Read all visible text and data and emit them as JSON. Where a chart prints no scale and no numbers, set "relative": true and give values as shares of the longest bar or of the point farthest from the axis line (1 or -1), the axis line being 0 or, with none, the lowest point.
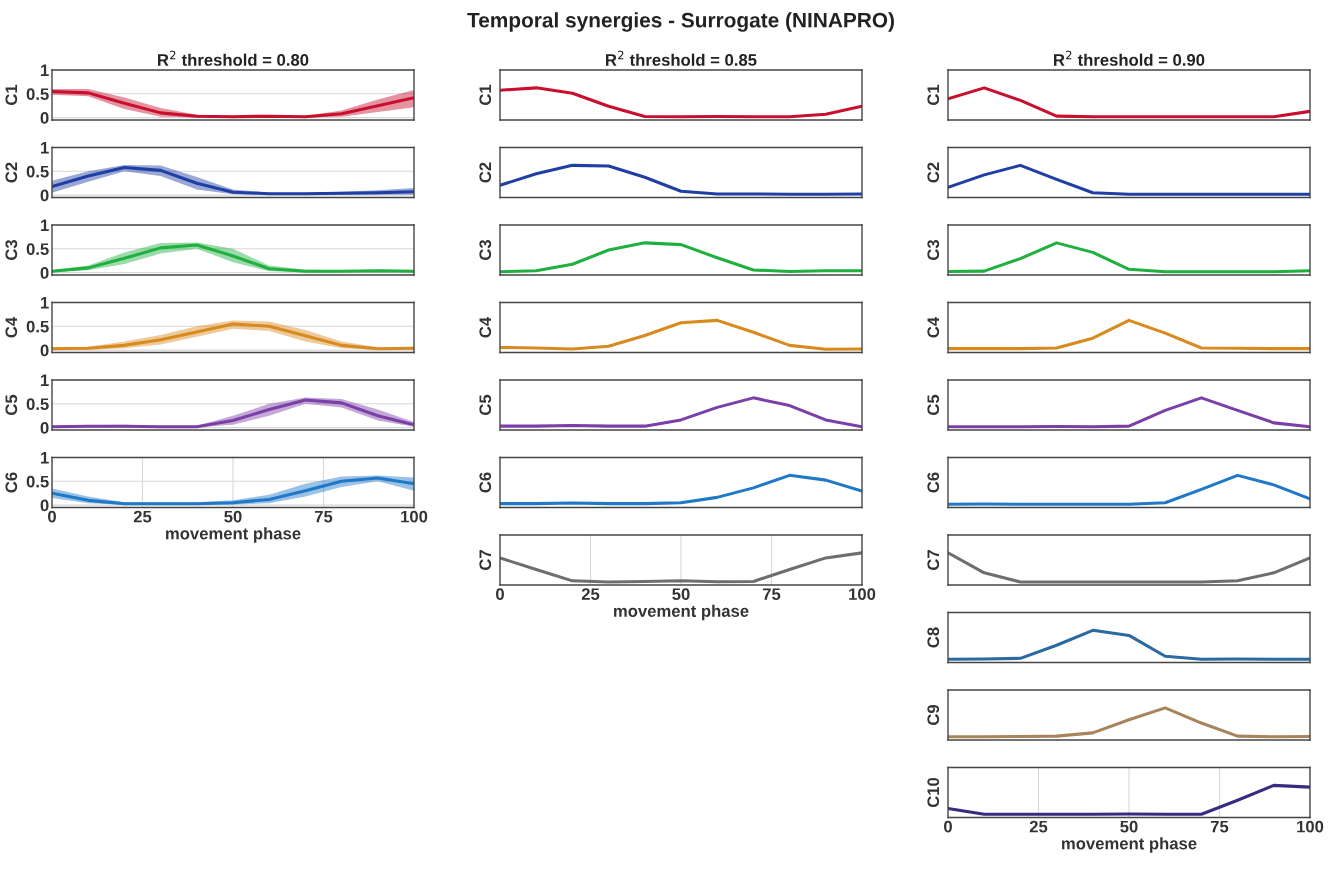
{
  "chart_data": [
    {
      "type": "line",
      "title": "R$^{2}$ threshold = 0.80",
      "ylabel": "C1",
      "categories": [
        null,
        null,
        null,
        null,
        null,
        null,
        null,
        null,
        null,
        null,
        null
      ],
      "ylim": [
        -0.05,
        1
      ],
      "yticks": [
        0,
        0.5,
        1
      ],
      "grid": "y",
      "tick_labels": "y",
      "series": [
        {
          "color": "#c8102e",
          "values": [
            0.55,
            0.52,
            0.3,
            0.1,
            0.03,
            0.02,
            0.03,
            0.02,
            0.08,
            0.25,
            0.42
          ],
          "lower": [
            0.48,
            0.45,
            0.18,
            0.02,
            0,
            0,
            0,
            0,
            0.02,
            0.12,
            0.22
          ],
          "upper": [
            0.6,
            0.6,
            0.42,
            0.2,
            0.06,
            0.04,
            0.05,
            0.04,
            0.15,
            0.38,
            0.58
          ]
        }
      ]
    },
    {
      "type": "line",
      "ylabel": "C2",
      "categories": [
        null,
        null,
        null,
        null,
        null,
        null,
        null,
        null,
        null,
        null,
        null
      ],
      "ylim": [
        -0.05,
        1
      ],
      "yticks": [
        0,
        0.5,
        1
      ],
      "grid": "y",
      "tick_labels": "y",
      "series": [
        {
          "color": "#1f3fa5",
          "values": [
            0.18,
            0.4,
            0.58,
            0.52,
            0.25,
            0.06,
            0.03,
            0.03,
            0.04,
            0.05,
            0.07
          ],
          "lower": [
            0.05,
            0.28,
            0.5,
            0.4,
            0.12,
            0.02,
            0.01,
            0.01,
            0.01,
            0.01,
            0.01
          ],
          "upper": [
            0.3,
            0.5,
            0.63,
            0.62,
            0.38,
            0.12,
            0.05,
            0.05,
            0.07,
            0.1,
            0.15
          ]
        }
      ]
    },
    {
      "type": "line",
      "ylabel": "C3",
      "categories": [
        null,
        null,
        null,
        null,
        null,
        null,
        null,
        null,
        null,
        null,
        null
      ],
      "ylim": [
        -0.05,
        1
      ],
      "yticks": [
        0,
        0.5,
        1
      ],
      "grid": "y",
      "tick_labels": "y",
      "series": [
        {
          "color": "#20b040",
          "values": [
            0.03,
            0.1,
            0.3,
            0.52,
            0.58,
            0.35,
            0.08,
            0.03,
            0.03,
            0.04,
            0.03
          ],
          "lower": [
            0.01,
            0.05,
            0.18,
            0.4,
            0.5,
            0.22,
            0.03,
            0.01,
            0.01,
            0.01,
            0.01
          ],
          "upper": [
            0.05,
            0.15,
            0.42,
            0.62,
            0.63,
            0.5,
            0.15,
            0.06,
            0.05,
            0.06,
            0.05
          ]
        }
      ]
    },
    {
      "type": "line",
      "ylabel": "C4",
      "categories": [
        null,
        null,
        null,
        null,
        null,
        null,
        null,
        null,
        null,
        null,
        null
      ],
      "ylim": [
        -0.05,
        1
      ],
      "yticks": [
        0,
        0.5,
        1
      ],
      "grid": "y",
      "tick_labels": "y",
      "series": [
        {
          "color": "#d98a1e",
          "values": [
            0.03,
            0.04,
            0.1,
            0.22,
            0.38,
            0.55,
            0.5,
            0.3,
            0.1,
            0.03,
            0.04
          ],
          "lower": [
            0.01,
            0.01,
            0.04,
            0.12,
            0.28,
            0.45,
            0.4,
            0.18,
            0.04,
            0.01,
            0.01
          ],
          "upper": [
            0.06,
            0.07,
            0.18,
            0.32,
            0.5,
            0.62,
            0.6,
            0.42,
            0.18,
            0.06,
            0.07
          ]
        }
      ]
    },
    {
      "type": "line",
      "ylabel": "C5",
      "categories": [
        null,
        null,
        null,
        null,
        null,
        null,
        null,
        null,
        null,
        null,
        null
      ],
      "ylim": [
        -0.05,
        1
      ],
      "yticks": [
        0,
        0.5,
        1
      ],
      "grid": "y",
      "tick_labels": "y",
      "series": [
        {
          "color": "#7b3fa8",
          "values": [
            0.02,
            0.03,
            0.03,
            0.02,
            0.02,
            0.15,
            0.38,
            0.58,
            0.52,
            0.25,
            0.06
          ],
          "lower": [
            0.01,
            0.01,
            0.01,
            0.01,
            0.01,
            0.06,
            0.25,
            0.5,
            0.42,
            0.15,
            0.02
          ],
          "upper": [
            0.04,
            0.05,
            0.06,
            0.04,
            0.04,
            0.25,
            0.5,
            0.63,
            0.6,
            0.38,
            0.12
          ]
        }
      ]
    },
    {
      "type": "line",
      "ylabel": "C6",
      "xlabel": "movement phase",
      "x": [
        0,
        10,
        20,
        30,
        40,
        50,
        60,
        70,
        80,
        90,
        100
      ],
      "xlim": [
        0,
        100
      ],
      "xticks": [
        0,
        25,
        50,
        75,
        100
      ],
      "ylim": [
        -0.05,
        1
      ],
      "yticks": [
        0,
        0.5,
        1
      ],
      "grid": true,
      "series": [
        {
          "color": "#1f78c8",
          "values": [
            0.25,
            0.1,
            0.03,
            0.03,
            0.03,
            0.05,
            0.12,
            0.3,
            0.5,
            0.57,
            0.45
          ],
          "lower": [
            0.15,
            0.04,
            0.01,
            0.01,
            0.01,
            0.01,
            0.04,
            0.18,
            0.38,
            0.5,
            0.3
          ],
          "upper": [
            0.35,
            0.18,
            0.06,
            0.06,
            0.06,
            0.1,
            0.22,
            0.45,
            0.6,
            0.62,
            0.58
          ]
        }
      ]
    },
    {
      "type": "line",
      "title": "Temporal synergies - Surrogate (NINAPRO)",
      "subtitle": "R$^{2}$ threshold = 0.85",
      "ylabel": "C1",
      "categories": [
        null,
        null,
        null,
        null,
        null,
        null,
        null,
        null,
        null,
        null,
        null
      ],
      "relative": true,
      "tick_labels": false,
      "series": [
        {
          "color": "#c8102e",
          "values": [
            0.92,
            1,
            0.82,
            0.38,
            0.04,
            0.03,
            0.04,
            0.03,
            0.03,
            0.11,
            0.38
          ]
        }
      ]
    },
    {
      "type": "line",
      "ylabel": "C2",
      "categories": [
        null,
        null,
        null,
        null,
        null,
        null,
        null,
        null,
        null,
        null,
        null
      ],
      "relative": true,
      "tick_labels": false,
      "series": [
        {
          "color": "#1f3fa5",
          "values": [
            0.33,
            0.72,
            1,
            0.98,
            0.6,
            0.13,
            0.04,
            0.04,
            0.03,
            0.03,
            0.04
          ]
        }
      ]
    },
    {
      "type": "line",
      "ylabel": "C3",
      "categories": [
        null,
        null,
        null,
        null,
        null,
        null,
        null,
        null,
        null,
        null,
        null
      ],
      "relative": true,
      "tick_labels": false,
      "series": [
        {
          "color": "#20b040",
          "values": [
            0.03,
            0.06,
            0.28,
            0.76,
            1,
            0.94,
            0.5,
            0.09,
            0.04,
            0.06,
            0.06
          ]
        }
      ]
    },
    {
      "type": "line",
      "ylabel": "C4",
      "categories": [
        null,
        null,
        null,
        null,
        null,
        null,
        null,
        null,
        null,
        null,
        null
      ],
      "relative": true,
      "tick_labels": false,
      "series": [
        {
          "color": "#d98a1e",
          "values": [
            0.09,
            0.07,
            0.04,
            0.13,
            0.49,
            0.92,
            1,
            0.6,
            0.16,
            0.03,
            0.04
          ]
        }
      ]
    },
    {
      "type": "line",
      "ylabel": "C5",
      "categories": [
        null,
        null,
        null,
        null,
        null,
        null,
        null,
        null,
        null,
        null,
        null
      ],
      "relative": true,
      "tick_labels": false,
      "series": [
        {
          "color": "#7b3fa8",
          "values": [
            0.05,
            0.05,
            0.07,
            0.05,
            0.05,
            0.26,
            0.68,
            1,
            0.74,
            0.26,
            0.03
          ]
        }
      ]
    },
    {
      "type": "line",
      "ylabel": "C6",
      "categories": [
        null,
        null,
        null,
        null,
        null,
        null,
        null,
        null,
        null,
        null,
        null
      ],
      "relative": true,
      "tick_labels": false,
      "series": [
        {
          "color": "#1f78c8",
          "values": [
            0.05,
            0.05,
            0.07,
            0.05,
            0.05,
            0.08,
            0.26,
            0.58,
            1,
            0.84,
            0.47
          ]
        }
      ]
    },
    {
      "type": "line",
      "ylabel": "C7",
      "xlabel": "movement phase",
      "x": [
        0,
        10,
        20,
        30,
        40,
        50,
        60,
        70,
        80,
        90,
        100
      ],
      "xlim": [
        0,
        100
      ],
      "xticks": [
        0,
        25,
        50,
        75,
        100
      ],
      "relative": true,
      "grid": "x",
      "tick_labels": "x",
      "series": [
        {
          "color": "#6e6e6e",
          "values": [
            0.83,
            0.44,
            0.06,
            0.02,
            0.04,
            0.06,
            0.03,
            0.04,
            0.44,
            0.83,
            1
          ]
        }
      ]
    },
    {
      "type": "line",
      "title": "R$^{2}$ threshold = 0.90",
      "ylabel": "C1",
      "categories": [
        null,
        null,
        null,
        null,
        null,
        null,
        null,
        null,
        null,
        null,
        null
      ],
      "relative": true,
      "tick_labels": false,
      "series": [
        {
          "color": "#c8102e",
          "values": [
            0.63,
            1,
            0.58,
            0.05,
            0.03,
            0.03,
            0.03,
            0.03,
            0.03,
            0.03,
            0.21
          ]
        }
      ]
    },
    {
      "type": "line",
      "ylabel": "C2",
      "categories": [
        null,
        null,
        null,
        null,
        null,
        null,
        null,
        null,
        null,
        null,
        null
      ],
      "relative": true,
      "tick_labels": false,
      "series": [
        {
          "color": "#1f3fa5",
          "values": [
            0.26,
            0.68,
            1,
            0.53,
            0.08,
            0.03,
            0.03,
            0.03,
            0.03,
            0.03,
            0.03
          ]
        }
      ]
    },
    {
      "type": "line",
      "ylabel": "C3",
      "categories": [
        null,
        null,
        null,
        null,
        null,
        null,
        null,
        null,
        null,
        null,
        null
      ],
      "relative": true,
      "tick_labels": false,
      "series": [
        {
          "color": "#20b040",
          "values": [
            0.04,
            0.05,
            0.47,
            1,
            0.68,
            0.11,
            0.03,
            0.03,
            0.03,
            0.03,
            0.06
          ]
        }
      ]
    },
    {
      "type": "line",
      "ylabel": "C4",
      "categories": [
        null,
        null,
        null,
        null,
        null,
        null,
        null,
        null,
        null,
        null,
        null
      ],
      "relative": true,
      "tick_labels": false,
      "series": [
        {
          "color": "#d98a1e",
          "values": [
            0.05,
            0.05,
            0.05,
            0.07,
            0.4,
            1,
            0.57,
            0.07,
            0.06,
            0.05,
            0.05
          ]
        }
      ]
    },
    {
      "type": "line",
      "ylabel": "C5",
      "categories": [
        null,
        null,
        null,
        null,
        null,
        null,
        null,
        null,
        null,
        null,
        null
      ],
      "relative": true,
      "tick_labels": false,
      "series": [
        {
          "color": "#7b3fa8",
          "values": [
            0.03,
            0.03,
            0.03,
            0.04,
            0.03,
            0.05,
            0.58,
            1,
            0.58,
            0.16,
            0.03
          ]
        }
      ]
    },
    {
      "type": "line",
      "ylabel": "C6",
      "categories": [
        null,
        null,
        null,
        null,
        null,
        null,
        null,
        null,
        null,
        null,
        null
      ],
      "relative": true,
      "tick_labels": false,
      "series": [
        {
          "color": "#1f78c8",
          "values": [
            0.03,
            0.04,
            0.03,
            0.03,
            0.03,
            0.03,
            0.08,
            0.53,
            1,
            0.68,
            0.21
          ]
        }
      ]
    },
    {
      "type": "line",
      "ylabel": "C7",
      "categories": [
        null,
        null,
        null,
        null,
        null,
        null,
        null,
        null,
        null,
        null,
        null
      ],
      "relative": true,
      "tick_labels": false,
      "series": [
        {
          "color": "#6e6e6e",
          "values": [
            1,
            0.33,
            0.02,
            0.02,
            0.02,
            0.02,
            0.02,
            0.02,
            0.06,
            0.33,
            0.83
          ]
        }
      ]
    },
    {
      "type": "line",
      "ylabel": "C8",
      "categories": [
        null,
        null,
        null,
        null,
        null,
        null,
        null,
        null,
        null,
        null,
        null
      ],
      "relative": true,
      "tick_labels": false,
      "series": [
        {
          "color": "#2a6aa0",
          "values": [
            0.03,
            0.04,
            0.06,
            0.5,
            1,
            0.83,
            0.13,
            0.03,
            0.04,
            0.03,
            0.03
          ]
        }
      ]
    },
    {
      "type": "line",
      "ylabel": "C9",
      "categories": [
        null,
        null,
        null,
        null,
        null,
        null,
        null,
        null,
        null,
        null,
        null
      ],
      "relative": true,
      "tick_labels": false,
      "series": [
        {
          "color": "#a8845c",
          "values": [
            0.03,
            0.03,
            0.04,
            0.05,
            0.16,
            0.6,
            1,
            0.49,
            0.05,
            0.03,
            0.04
          ]
        }
      ]
    },
    {
      "type": "line",
      "ylabel": "C10",
      "xlabel": "movement phase",
      "x": [
        0,
        10,
        20,
        30,
        40,
        50,
        60,
        70,
        80,
        90,
        100
      ],
      "xlim": [
        0,
        100
      ],
      "xticks": [
        0,
        25,
        50,
        75,
        100
      ],
      "relative": true,
      "grid": "x",
      "tick_labels": "x",
      "series": [
        {
          "color": "#3a2a80",
          "values": [
            0.22,
            0.03,
            0.03,
            0.03,
            0.03,
            0.04,
            0.03,
            0.03,
            0.5,
            1,
            0.94
          ]
        }
      ]
    }
  ]
}
